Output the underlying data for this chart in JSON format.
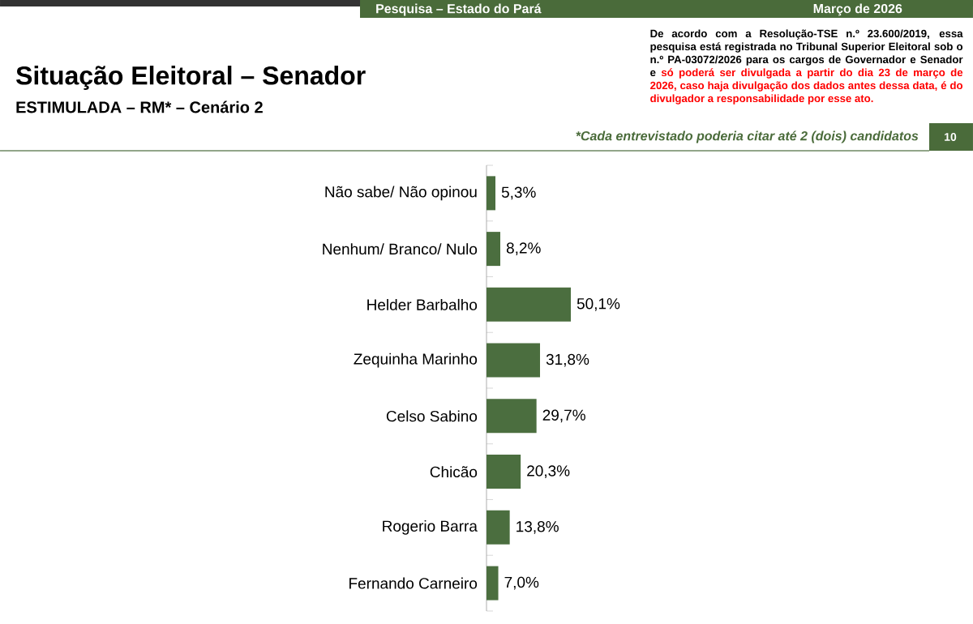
{
  "chart_data": {
    "type": "bar",
    "orientation": "horizontal",
    "title": "Situação Eleitoral – Senador",
    "subtitle": "ESTIMULADA – RM* – Cenário 2",
    "categories": [
      "Não sabe/ Não opinou",
      "Nenhum/ Branco/ Nulo",
      "Helder Barbalho",
      "Zequinha Marinho",
      "Celso Sabino",
      "Chicão",
      "Rogerio Barra",
      "Fernando Carneiro"
    ],
    "values": [
      5.3,
      8.2,
      50.1,
      31.8,
      29.7,
      20.3,
      13.8,
      7.0
    ],
    "value_labels": [
      "5,3%",
      "8,2%",
      "50,1%",
      "31,8%",
      "29,7%",
      "20,3%",
      "13,8%",
      "7,0%"
    ],
    "color": "#4b6e3f",
    "annotations": [
      "Pesquisa – Estado do Pará",
      "Março de 2026",
      "De acordo com a Resolução-TSE n.º 23.600/2019, essa pesquisa está registrada no Tribunal Superior Eleitoral sob o n.º PA-03072/2026 para os cargos de Governador e Senador e",
      "só poderá ser divulgada a partir do dia 23 de março de 2026, caso haja divulgação dos dados antes dessa data, é do divulgador a responsabilidade por esse ato.",
      "*Cada entrevistado poderia citar até 2 (dois) candidatos",
      "10"
    ]
  }
}
